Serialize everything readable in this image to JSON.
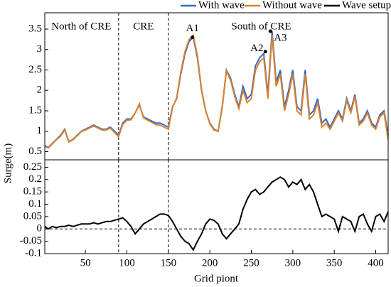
{
  "chart_data": [
    {
      "type": "line",
      "x": [
        1,
        5,
        10,
        15,
        20,
        25,
        30,
        35,
        40,
        45,
        50,
        55,
        60,
        65,
        70,
        75,
        80,
        85,
        90,
        95,
        100,
        105,
        110,
        115,
        120,
        125,
        130,
        135,
        140,
        145,
        150,
        155,
        160,
        165,
        170,
        175,
        180,
        185,
        190,
        195,
        200,
        205,
        210,
        215,
        220,
        225,
        230,
        235,
        240,
        245,
        250,
        255,
        260,
        265,
        270,
        275,
        280,
        285,
        290,
        295,
        300,
        305,
        310,
        315,
        320,
        325,
        330,
        335,
        340,
        345,
        350,
        355,
        360,
        365,
        370,
        375,
        380,
        385,
        390,
        395,
        400,
        405,
        410,
        415
      ],
      "series": [
        {
          "name": "With wave",
          "color": "#3366cc",
          "values": [
            0.65,
            0.6,
            0.7,
            0.8,
            0.9,
            1.05,
            0.75,
            0.8,
            0.9,
            1.0,
            1.05,
            1.1,
            1.15,
            1.1,
            1.05,
            1.05,
            1.1,
            1.0,
            0.9,
            1.2,
            1.3,
            1.3,
            1.45,
            1.65,
            1.35,
            1.3,
            1.25,
            1.2,
            1.2,
            1.15,
            1.1,
            1.6,
            1.8,
            2.4,
            2.9,
            3.2,
            3.3,
            2.8,
            2.0,
            1.5,
            1.2,
            1.05,
            1.0,
            1.6,
            2.5,
            2.3,
            1.9,
            1.6,
            2.1,
            1.8,
            1.9,
            2.6,
            2.8,
            2.9,
            1.9,
            3.45,
            2.2,
            2.5,
            1.6,
            2.0,
            2.5,
            1.6,
            1.5,
            2.5,
            1.4,
            1.5,
            1.8,
            1.2,
            1.3,
            1.1,
            1.3,
            1.5,
            1.3,
            1.8,
            1.5,
            1.9,
            1.2,
            1.3,
            1.5,
            1.2,
            1.1,
            1.4,
            1.5,
            0.9
          ]
        },
        {
          "name": "Without wave",
          "color": "#d9822b",
          "values": [
            0.63,
            0.59,
            0.69,
            0.79,
            0.88,
            1.03,
            0.74,
            0.79,
            0.89,
            0.99,
            1.03,
            1.08,
            1.13,
            1.08,
            1.03,
            1.03,
            1.08,
            0.97,
            0.87,
            1.17,
            1.27,
            1.28,
            1.45,
            1.67,
            1.33,
            1.27,
            1.22,
            1.16,
            1.15,
            1.1,
            1.05,
            1.58,
            1.82,
            2.45,
            2.95,
            3.25,
            3.35,
            2.85,
            2.02,
            1.5,
            1.18,
            1.03,
            1.0,
            1.62,
            2.48,
            2.25,
            1.85,
            1.55,
            2.0,
            1.7,
            1.8,
            2.5,
            2.7,
            2.8,
            1.8,
            3.35,
            2.1,
            2.4,
            1.5,
            1.9,
            2.4,
            1.5,
            1.4,
            2.4,
            1.3,
            1.4,
            1.7,
            1.1,
            1.2,
            1.05,
            1.25,
            1.45,
            1.25,
            1.75,
            1.45,
            1.85,
            1.15,
            1.25,
            1.45,
            1.15,
            1.05,
            1.35,
            1.45,
            0.8
          ]
        }
      ],
      "ylim": [
        0.3,
        3.9
      ],
      "yticks": [
        0.5,
        1,
        1.5,
        2,
        2.5,
        3,
        3.5
      ],
      "xlim": [
        1,
        415
      ],
      "vlines": [
        90,
        150
      ],
      "regions": [
        {
          "label": "North of CRE",
          "x": 45
        },
        {
          "label": "CRE",
          "x": 120
        },
        {
          "label": "South of CRE",
          "x": 262
        }
      ],
      "points": [
        {
          "label": "A1",
          "x": 179,
          "y": 3.3
        },
        {
          "label": "A2",
          "x": 267,
          "y": 2.95
        },
        {
          "label": "A3",
          "x": 273,
          "y": 3.45
        }
      ],
      "legend": "top-right"
    },
    {
      "type": "line",
      "x": [
        1,
        5,
        10,
        15,
        20,
        25,
        30,
        35,
        40,
        45,
        50,
        55,
        60,
        65,
        70,
        75,
        80,
        85,
        90,
        95,
        100,
        105,
        110,
        115,
        120,
        125,
        130,
        135,
        140,
        145,
        150,
        155,
        160,
        165,
        170,
        175,
        180,
        185,
        190,
        195,
        200,
        205,
        210,
        215,
        220,
        225,
        230,
        235,
        240,
        245,
        250,
        255,
        260,
        265,
        270,
        275,
        280,
        285,
        290,
        295,
        300,
        305,
        310,
        315,
        320,
        325,
        330,
        335,
        340,
        345,
        350,
        355,
        360,
        365,
        370,
        375,
        380,
        385,
        390,
        395,
        400,
        405,
        410,
        415
      ],
      "series": [
        {
          "name": "Wave setup",
          "color": "#000000",
          "values": [
            0.01,
            0.0,
            0.01,
            0.005,
            0.01,
            0.01,
            0.015,
            0.01,
            0.015,
            0.02,
            0.02,
            0.02,
            0.025,
            0.02,
            0.025,
            0.03,
            0.03,
            0.035,
            0.04,
            0.045,
            0.03,
            0.01,
            -0.02,
            0.0,
            0.02,
            0.03,
            0.04,
            0.05,
            0.06,
            0.06,
            0.055,
            0.03,
            0.0,
            -0.03,
            -0.05,
            -0.06,
            -0.085,
            -0.05,
            -0.02,
            0.02,
            0.04,
            0.035,
            0.02,
            -0.02,
            -0.04,
            -0.02,
            0.0,
            0.02,
            0.08,
            0.12,
            0.15,
            0.16,
            0.14,
            0.15,
            0.17,
            0.19,
            0.2,
            0.21,
            0.2,
            0.17,
            0.19,
            0.18,
            0.2,
            0.16,
            0.18,
            0.15,
            0.1,
            0.05,
            0.06,
            0.05,
            0.04,
            -0.01,
            0.05,
            0.04,
            0.03,
            -0.01,
            0.05,
            0.06,
            0.02,
            -0.01,
            0.05,
            0.06,
            0.03,
            0.07
          ]
        }
      ],
      "ylim": [
        -0.1,
        0.28
      ],
      "yticks": [
        -0.1,
        -0.05,
        0,
        0.05,
        0.1,
        0.15,
        0.2,
        0.25
      ],
      "xlim": [
        1,
        415
      ],
      "xticks": [
        50,
        100,
        150,
        200,
        250,
        300,
        350,
        400
      ],
      "vlines": [
        90,
        150
      ],
      "hline": 0,
      "xlabel": "Grid piont",
      "ylabel": "Surge(m)"
    }
  ]
}
